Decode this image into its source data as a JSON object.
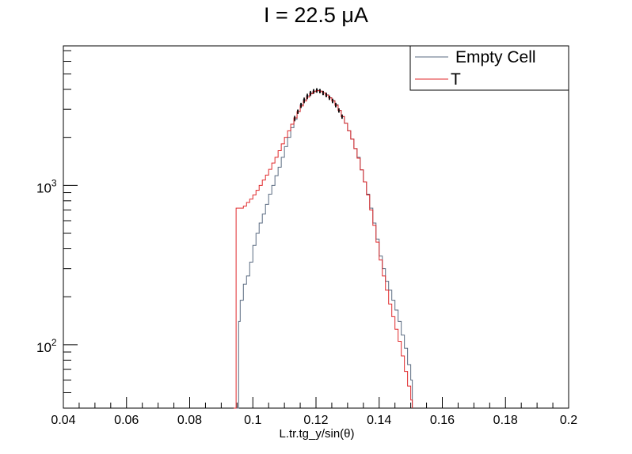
{
  "chart_data": {
    "type": "line",
    "title": "I = 22.5 μA",
    "xlabel": "L.tr.tg_y/sin(θ)",
    "ylabel": "",
    "xlim": [
      0.04,
      0.2
    ],
    "ylim": [
      40,
      7500
    ],
    "yscale": "log",
    "grid": false,
    "legend_position": "top-right",
    "x_ticks": [
      0.04,
      0.06,
      0.08,
      0.1,
      0.12,
      0.14,
      0.16,
      0.18,
      0.2
    ],
    "x_tick_labels": [
      "0.04",
      "0.06",
      "0.08",
      "0.1",
      "0.12",
      "0.14",
      "0.16",
      "0.18",
      "0.2"
    ],
    "y_tick_labels": [
      {
        "value": 100,
        "base": "10",
        "exp": "2"
      },
      {
        "value": 1000,
        "base": "10",
        "exp": "3"
      }
    ],
    "series": [
      {
        "name": "Empty Cell",
        "color": "#596a80",
        "x": [
          0.094,
          0.0955,
          0.096,
          0.097,
          0.098,
          0.099,
          0.1,
          0.101,
          0.102,
          0.103,
          0.104,
          0.105,
          0.106,
          0.107,
          0.108,
          0.109,
          0.11,
          0.111,
          0.112,
          0.113,
          0.114,
          0.115,
          0.116,
          0.117,
          0.118,
          0.119,
          0.12,
          0.121,
          0.122,
          0.123,
          0.124,
          0.125,
          0.126,
          0.127,
          0.128,
          0.129,
          0.13,
          0.131,
          0.132,
          0.133,
          0.134,
          0.135,
          0.136,
          0.137,
          0.138,
          0.139,
          0.14,
          0.141,
          0.142,
          0.143,
          0.144,
          0.145,
          0.146,
          0.147,
          0.148,
          0.149,
          0.15
        ],
        "values": [
          40,
          140,
          190,
          240,
          270,
          330,
          420,
          500,
          580,
          660,
          760,
          880,
          1000,
          1150,
          1300,
          1500,
          1750,
          2000,
          2300,
          2600,
          2900,
          3200,
          3450,
          3650,
          3800,
          3900,
          3950,
          3900,
          3800,
          3700,
          3550,
          3400,
          3200,
          2950,
          2700,
          2450,
          2200,
          1950,
          1700,
          1500,
          1250,
          1050,
          880,
          720,
          580,
          460,
          360,
          300,
          250,
          220,
          190,
          165,
          140,
          115,
          95,
          75,
          60
        ]
      },
      {
        "name": "T",
        "color": "#e0292b",
        "x": [
          0.094,
          0.0947,
          0.096,
          0.097,
          0.098,
          0.099,
          0.1,
          0.101,
          0.102,
          0.103,
          0.104,
          0.105,
          0.106,
          0.107,
          0.108,
          0.109,
          0.11,
          0.111,
          0.112,
          0.113,
          0.114,
          0.115,
          0.116,
          0.117,
          0.118,
          0.119,
          0.12,
          0.121,
          0.122,
          0.123,
          0.124,
          0.125,
          0.126,
          0.127,
          0.128,
          0.129,
          0.13,
          0.131,
          0.132,
          0.133,
          0.134,
          0.135,
          0.136,
          0.137,
          0.138,
          0.139,
          0.14,
          0.141,
          0.142,
          0.143,
          0.144,
          0.145,
          0.146,
          0.147,
          0.148,
          0.149,
          0.15
        ],
        "values": [
          40,
          720,
          720,
          740,
          780,
          820,
          870,
          930,
          1000,
          1080,
          1160,
          1260,
          1380,
          1500,
          1650,
          1820,
          2000,
          2200,
          2420,
          2650,
          2900,
          3150,
          3380,
          3580,
          3750,
          3870,
          3930,
          3900,
          3800,
          3680,
          3540,
          3380,
          3180,
          2950,
          2700,
          2450,
          2200,
          1950,
          1700,
          1480,
          1250,
          1050,
          870,
          700,
          560,
          440,
          340,
          270,
          220,
          180,
          150,
          125,
          105,
          85,
          68,
          55,
          45
        ]
      }
    ]
  }
}
